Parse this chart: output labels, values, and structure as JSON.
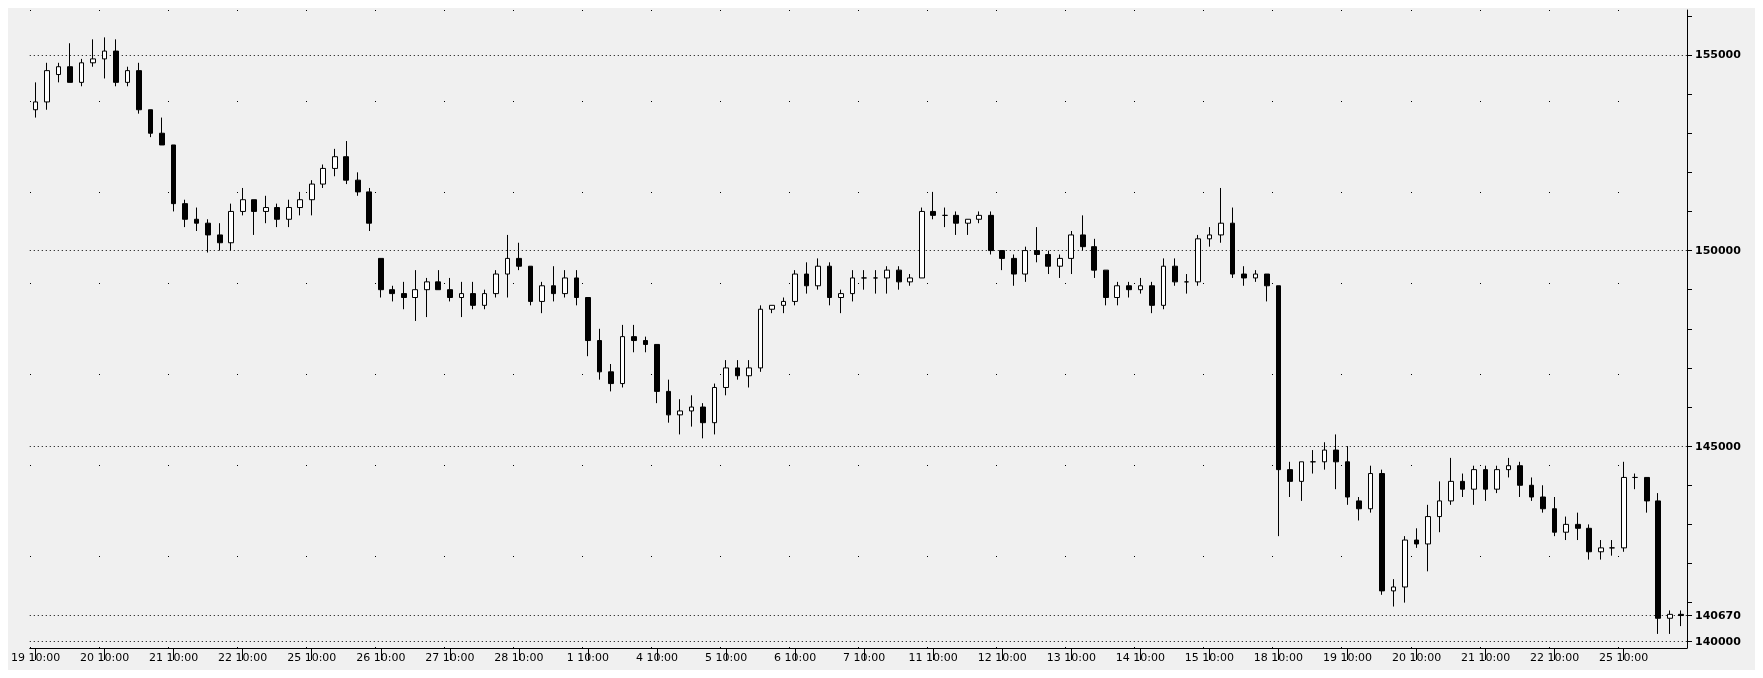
{
  "chart_data": {
    "type": "candlestick",
    "categories": [
      "19 10:00",
      null,
      null,
      null,
      null,
      null,
      "20 10:00",
      null,
      null,
      null,
      null,
      null,
      "21 10:00",
      null,
      null,
      null,
      null,
      null,
      "22 10:00",
      null,
      null,
      null,
      null,
      null,
      "25 10:00",
      null,
      null,
      null,
      null,
      null,
      "26 10:00",
      null,
      null,
      null,
      null,
      null,
      "27 10:00",
      null,
      null,
      null,
      null,
      null,
      "28 10:00",
      null,
      null,
      null,
      null,
      null,
      "1 10:00",
      null,
      null,
      null,
      null,
      null,
      "4 10:00",
      null,
      null,
      null,
      null,
      null,
      "5 10:00",
      null,
      null,
      null,
      null,
      null,
      "6 10:00",
      null,
      null,
      null,
      null,
      null,
      "7 10:00",
      null,
      null,
      null,
      null,
      null,
      "11 10:00",
      null,
      null,
      null,
      null,
      null,
      "12 10:00",
      null,
      null,
      null,
      null,
      null,
      "13 10:00",
      null,
      null,
      null,
      null,
      null,
      "14 10:00",
      null,
      null,
      null,
      null,
      null,
      "15 10:00",
      null,
      null,
      null,
      null,
      null,
      "18 10:00",
      null,
      null,
      null,
      null,
      null,
      "19 10:00",
      null,
      null,
      null,
      null,
      null,
      "20 10:00",
      null,
      null,
      null,
      null,
      null,
      "21 10:00",
      null,
      null,
      null,
      null,
      null,
      "22 10:00",
      null,
      null,
      null,
      null,
      null,
      "25 10:00",
      null,
      null,
      null,
      null,
      null
    ],
    "ohlc": [
      [
        153600,
        154300,
        153400,
        153800
      ],
      [
        153800,
        154800,
        153600,
        154600
      ],
      [
        154500,
        154800,
        154300,
        154700
      ],
      [
        154700,
        155300,
        154300,
        154300
      ],
      [
        154300,
        154900,
        154200,
        154800
      ],
      [
        154800,
        155400,
        154700,
        154900
      ],
      [
        154900,
        155450,
        154400,
        155100
      ],
      [
        155100,
        155400,
        154200,
        154300
      ],
      [
        154300,
        154700,
        154200,
        154600
      ],
      [
        154600,
        154800,
        153500,
        153600
      ],
      [
        153600,
        153600,
        152900,
        153000
      ],
      [
        153000,
        153400,
        152700,
        152700
      ],
      [
        152700,
        152700,
        151000,
        151200
      ],
      [
        151200,
        151300,
        150600,
        150800
      ],
      [
        150800,
        151100,
        150500,
        150700
      ],
      [
        150700,
        150800,
        149950,
        150400
      ],
      [
        150400,
        150700,
        150000,
        150200
      ],
      [
        150200,
        151200,
        150000,
        151000
      ],
      [
        151000,
        151600,
        150900,
        151300
      ],
      [
        151300,
        151300,
        150400,
        151000
      ],
      [
        151000,
        151400,
        150700,
        151100
      ],
      [
        151100,
        151200,
        150600,
        150800
      ],
      [
        150800,
        151300,
        150600,
        151100
      ],
      [
        151100,
        151500,
        150900,
        151300
      ],
      [
        151300,
        151800,
        150900,
        151700
      ],
      [
        151700,
        152200,
        151600,
        152100
      ],
      [
        152100,
        152600,
        151900,
        152400
      ],
      [
        152400,
        152800,
        151700,
        151800
      ],
      [
        151800,
        152000,
        151400,
        151500
      ],
      [
        151500,
        151600,
        150500,
        150700
      ],
      [
        149800,
        149800,
        148800,
        149000
      ],
      [
        149000,
        149100,
        148700,
        148900
      ],
      [
        148900,
        149200,
        148500,
        148800
      ],
      [
        148800,
        149500,
        148200,
        149000
      ],
      [
        149000,
        149300,
        148300,
        149200
      ],
      [
        149200,
        149500,
        149000,
        149000
      ],
      [
        149000,
        149300,
        148700,
        148800
      ],
      [
        148800,
        149200,
        148300,
        148900
      ],
      [
        148900,
        149200,
        148500,
        148600
      ],
      [
        148600,
        149000,
        148500,
        148900
      ],
      [
        148900,
        149500,
        148800,
        149400
      ],
      [
        149400,
        150400,
        148800,
        149800
      ],
      [
        149800,
        150200,
        149500,
        149600
      ],
      [
        149600,
        149600,
        148600,
        148700
      ],
      [
        148700,
        149200,
        148400,
        149100
      ],
      [
        149100,
        149600,
        148700,
        148900
      ],
      [
        148900,
        149500,
        148800,
        149300
      ],
      [
        149300,
        149500,
        148600,
        148800
      ],
      [
        148800,
        148800,
        147300,
        147700
      ],
      [
        147700,
        148000,
        146700,
        146900
      ],
      [
        146900,
        147100,
        146400,
        146600
      ],
      [
        146600,
        148100,
        146500,
        147800
      ],
      [
        147800,
        148100,
        147400,
        147700
      ],
      [
        147700,
        147800,
        147400,
        147600
      ],
      [
        147600,
        147600,
        146100,
        146400
      ],
      [
        146400,
        146700,
        145600,
        145800
      ],
      [
        145800,
        146200,
        145300,
        145900
      ],
      [
        145900,
        146300,
        145500,
        146000
      ],
      [
        146000,
        146100,
        145200,
        145600
      ],
      [
        145600,
        146600,
        145300,
        146500
      ],
      [
        146500,
        147200,
        146300,
        147000
      ],
      [
        147000,
        147200,
        146700,
        146800
      ],
      [
        146800,
        147200,
        146500,
        147000
      ],
      [
        147000,
        148600,
        146900,
        148500
      ],
      [
        148500,
        148600,
        148400,
        148600
      ],
      [
        148600,
        148800,
        148400,
        148700
      ],
      [
        148700,
        149500,
        148600,
        149400
      ],
      [
        149400,
        149700,
        148900,
        149100
      ],
      [
        149100,
        149800,
        149000,
        149600
      ],
      [
        149600,
        149700,
        148600,
        148800
      ],
      [
        148800,
        149000,
        148400,
        148900
      ],
      [
        148900,
        149500,
        148700,
        149300
      ],
      [
        149300,
        149500,
        149000,
        149300
      ],
      [
        149300,
        149500,
        148900,
        149300
      ],
      [
        149300,
        149600,
        148900,
        149500
      ],
      [
        149500,
        149600,
        149000,
        149200
      ],
      [
        149200,
        149400,
        149100,
        149300
      ],
      [
        149300,
        151100,
        149300,
        151000
      ],
      [
        151000,
        151500,
        150800,
        150900
      ],
      [
        150900,
        151100,
        150600,
        150900
      ],
      [
        150900,
        151000,
        150400,
        150700
      ],
      [
        150700,
        150800,
        150400,
        150800
      ],
      [
        150800,
        151000,
        150700,
        150900
      ],
      [
        150900,
        151000,
        149900,
        150000
      ],
      [
        150000,
        150000,
        149500,
        149800
      ],
      [
        149800,
        149900,
        149100,
        149400
      ],
      [
        149400,
        150100,
        149200,
        150000
      ],
      [
        150000,
        150600,
        149700,
        149900
      ],
      [
        149900,
        150000,
        149400,
        149600
      ],
      [
        149600,
        149900,
        149300,
        149800
      ],
      [
        149800,
        150500,
        149400,
        150400
      ],
      [
        150400,
        150900,
        150000,
        150100
      ],
      [
        150100,
        150300,
        149300,
        149500
      ],
      [
        149500,
        149500,
        148600,
        148800
      ],
      [
        148800,
        149200,
        148600,
        149100
      ],
      [
        149100,
        149200,
        148800,
        149000
      ],
      [
        149000,
        149300,
        148900,
        149100
      ],
      [
        149100,
        149200,
        148400,
        148600
      ],
      [
        148600,
        149800,
        148500,
        149600
      ],
      [
        149600,
        149800,
        149100,
        149200
      ],
      [
        149200,
        149400,
        148900,
        149200
      ],
      [
        149200,
        150400,
        149100,
        150300
      ],
      [
        150300,
        150600,
        150100,
        150400
      ],
      [
        150400,
        151600,
        150200,
        150700
      ],
      [
        150700,
        151100,
        149300,
        149400
      ],
      [
        149400,
        149600,
        149100,
        149300
      ],
      [
        149300,
        149500,
        149200,
        149400
      ],
      [
        149400,
        149400,
        148700,
        149100
      ],
      [
        149100,
        149100,
        142700,
        144400
      ],
      [
        144400,
        144600,
        143700,
        144100
      ],
      [
        144100,
        144600,
        143600,
        144600
      ],
      [
        144600,
        144900,
        144300,
        144600
      ],
      [
        144600,
        145100,
        144400,
        144900
      ],
      [
        144900,
        145300,
        143900,
        144600
      ],
      [
        144600,
        145000,
        143500,
        143700
      ],
      [
        143600,
        143700,
        143100,
        143400
      ],
      [
        143400,
        144500,
        143300,
        144300
      ],
      [
        144300,
        144400,
        141200,
        141300
      ],
      [
        141300,
        141600,
        140900,
        141400
      ],
      [
        141400,
        142700,
        141000,
        142600
      ],
      [
        142600,
        142900,
        142400,
        142500
      ],
      [
        142500,
        143500,
        141800,
        143200
      ],
      [
        143200,
        144100,
        142800,
        143600
      ],
      [
        143600,
        144700,
        143500,
        144100
      ],
      [
        144100,
        144300,
        143700,
        143900
      ],
      [
        143900,
        144500,
        143500,
        144400
      ],
      [
        144400,
        144500,
        143600,
        143900
      ],
      [
        143900,
        144500,
        143800,
        144400
      ],
      [
        144400,
        144700,
        144200,
        144500
      ],
      [
        144500,
        144600,
        143700,
        144000
      ],
      [
        144000,
        144200,
        143600,
        143700
      ],
      [
        143700,
        144000,
        143300,
        143400
      ],
      [
        143400,
        143700,
        142700,
        142800
      ],
      [
        142800,
        143200,
        142600,
        143000
      ],
      [
        143000,
        143300,
        142600,
        142900
      ],
      [
        142900,
        143000,
        142100,
        142300
      ],
      [
        142300,
        142600,
        142100,
        142400
      ],
      [
        142400,
        142600,
        142200,
        142400
      ],
      [
        142400,
        144600,
        142300,
        144200
      ],
      [
        144200,
        144300,
        143900,
        144200
      ],
      [
        144200,
        144200,
        143300,
        143600
      ],
      [
        143600,
        143800,
        140200,
        140600
      ],
      [
        140600,
        140800,
        140200,
        140700
      ],
      [
        140700,
        140800,
        140400,
        140670
      ]
    ],
    "ylim": [
      139840,
      156150
    ],
    "yticks": [
      140000,
      {
        "value": 140670,
        "label": "140670"
      },
      {
        "value": 141000,
        "label": null
      },
      {
        "value": 142000,
        "label": null
      },
      {
        "value": 143000,
        "label": null
      },
      {
        "value": 144000,
        "label": null
      },
      145000,
      {
        "value": 146000,
        "label": null
      },
      {
        "value": 147000,
        "label": null
      },
      {
        "value": 148000,
        "label": null
      },
      {
        "value": 149000,
        "label": null
      },
      150000,
      {
        "value": 151000,
        "label": null
      },
      {
        "value": 152000,
        "label": null
      },
      {
        "value": 153000,
        "label": null
      },
      {
        "value": 154000,
        "label": null
      },
      155000,
      {
        "value": 156000,
        "label": null
      }
    ],
    "grid": true
  }
}
